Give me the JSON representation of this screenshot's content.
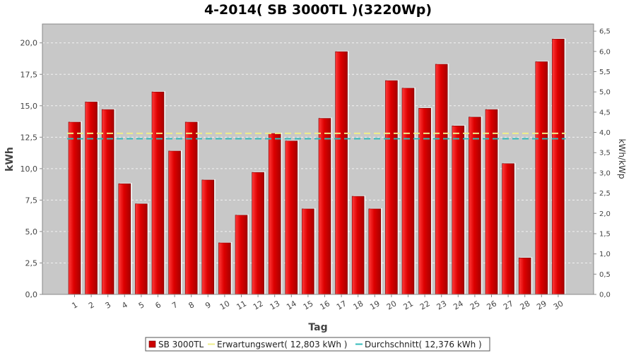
{
  "chart_data": {
    "type": "bar",
    "title": "4-2014( SB 3000TL )(3220Wp)",
    "xlabel": "Tag",
    "ylabel": "kWh",
    "ylabel_right": "kWh/kWp",
    "ylim": [
      0,
      21.5
    ],
    "ylim_right": [
      0,
      6.677
    ],
    "yticks": [
      0,
      2.5,
      5,
      7.5,
      10,
      12.5,
      15,
      17.5,
      20
    ],
    "ytick_labels": [
      "0,0",
      "2,5",
      "5,0",
      "7,5",
      "10,0",
      "12,5",
      "15,0",
      "17,5",
      "20,0"
    ],
    "yticks_right": [
      0,
      0.5,
      1,
      1.5,
      2,
      2.5,
      3,
      3.5,
      4,
      4.5,
      5,
      5.5,
      6,
      6.5
    ],
    "ytick_labels_right": [
      "0,0",
      "0,5",
      "1,0",
      "1,5",
      "2,0",
      "2,5",
      "3,0",
      "3,5",
      "4,0",
      "4,5",
      "5,0",
      "5,5",
      "6,0",
      "6,5"
    ],
    "categories": [
      "1",
      "2",
      "3",
      "4",
      "5",
      "6",
      "7",
      "8",
      "9",
      "10",
      "11",
      "12",
      "13",
      "14",
      "15",
      "16",
      "17",
      "18",
      "19",
      "20",
      "21",
      "22",
      "23",
      "24",
      "25",
      "26",
      "27",
      "28",
      "29",
      "30"
    ],
    "series": [
      {
        "name": "SB 3000TL",
        "color": "#dd0000",
        "values": [
          13.7,
          15.3,
          14.7,
          8.8,
          7.2,
          16.1,
          11.4,
          13.7,
          9.1,
          4.1,
          6.3,
          9.7,
          12.8,
          12.2,
          6.8,
          14.0,
          19.3,
          7.8,
          6.8,
          17.0,
          16.4,
          14.8,
          18.3,
          13.4,
          14.1,
          14.7,
          10.4,
          2.9,
          18.5,
          20.3
        ]
      }
    ],
    "reference_lines": [
      {
        "name": "Erwartungswert",
        "value": 12.803,
        "color": "#eeee88"
      },
      {
        "name": "Durchschnitt",
        "value": 12.376,
        "color": "#33bbbb"
      }
    ],
    "legend": {
      "placement": "bottom",
      "items": [
        {
          "label": "SB 3000TL",
          "kind": "box",
          "color": "#cc0000"
        },
        {
          "label": "Erwartungswert( 12,803 kWh )",
          "kind": "line",
          "color": "#eeee88"
        },
        {
          "label": "Durchschnitt( 12,376 kWh )",
          "kind": "line",
          "color": "#33bbbb"
        }
      ]
    },
    "grid": true,
    "plot_background": "#c8c8c8"
  }
}
